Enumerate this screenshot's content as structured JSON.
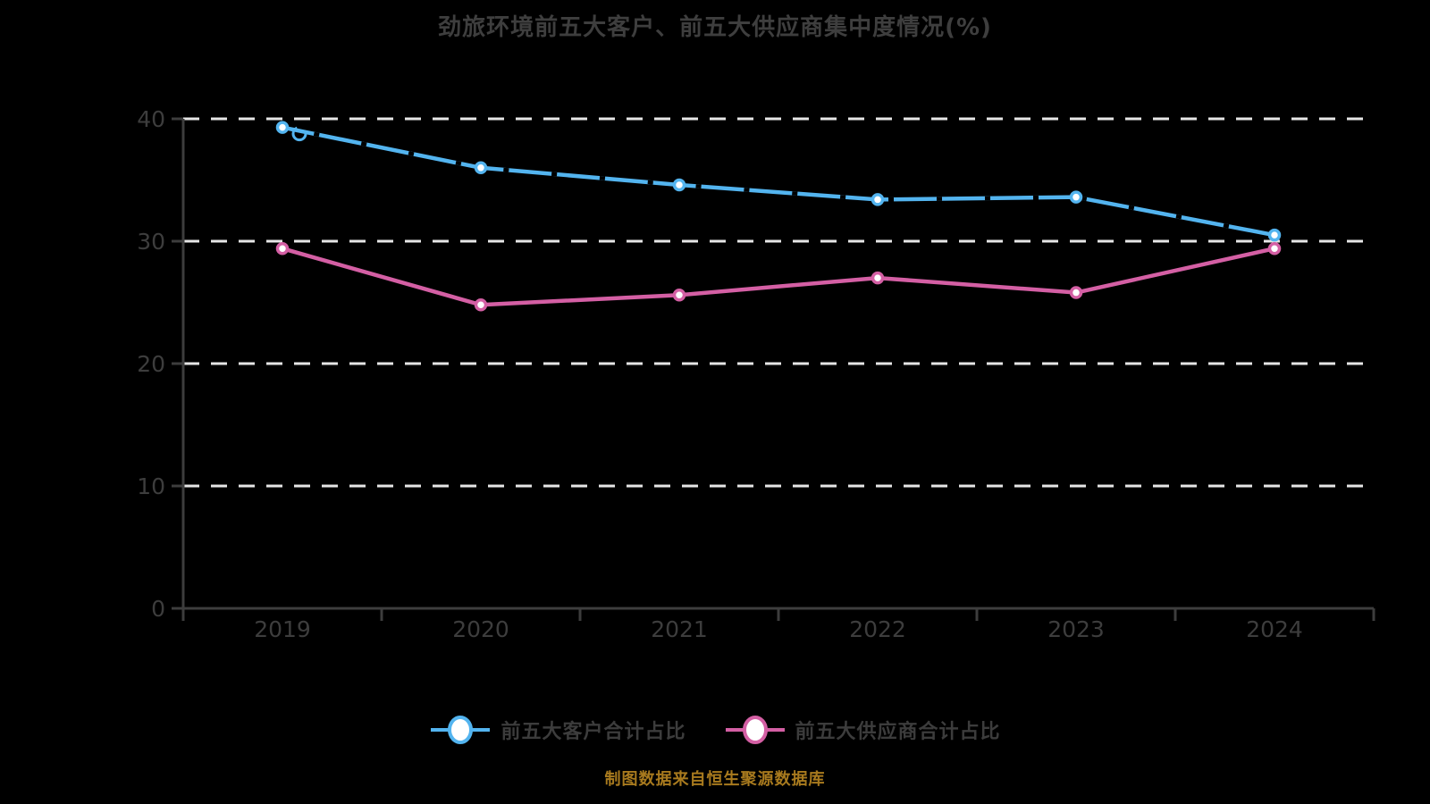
{
  "title": "劲旅环境前五大客户、前五大供应商集中度情况(%)",
  "caption": "制图数据来自恒生聚源数据库",
  "colors": {
    "background": "#000000",
    "axis": "#3d3d3d",
    "tick_label": "#3d3d3d",
    "gridline": "#e6e6e6",
    "title_text": "#3e3e3e",
    "legend_text": "#3c3c3c",
    "caption_text": "#a87a1e",
    "customers_line": "#53b4ef",
    "suppliers_line": "#d45fa4",
    "marker_fill": "#ffffff",
    "sketch_dash": "#000000"
  },
  "chart_data": {
    "type": "line",
    "title": "劲旅环境前五大客户、前五大供应商集中度情况(%)",
    "categories": [
      "2019",
      "2020",
      "2021",
      "2022",
      "2023",
      "2024"
    ],
    "series": [
      {
        "name": "前五大客户合计占比",
        "color_key": "customers_line",
        "values": [
          39.3,
          36.0,
          34.6,
          33.4,
          33.6,
          30.5
        ]
      },
      {
        "name": "前五大供应商合计占比",
        "color_key": "suppliers_line",
        "values": [
          29.4,
          24.8,
          25.6,
          27.0,
          25.8,
          29.4
        ]
      }
    ],
    "xlabel": "",
    "ylabel": "",
    "ylim": [
      0,
      40
    ],
    "yticks": [
      0,
      10,
      20,
      30,
      40
    ],
    "grid": "horizontal-dashed-white",
    "legend_position": "bottom"
  }
}
